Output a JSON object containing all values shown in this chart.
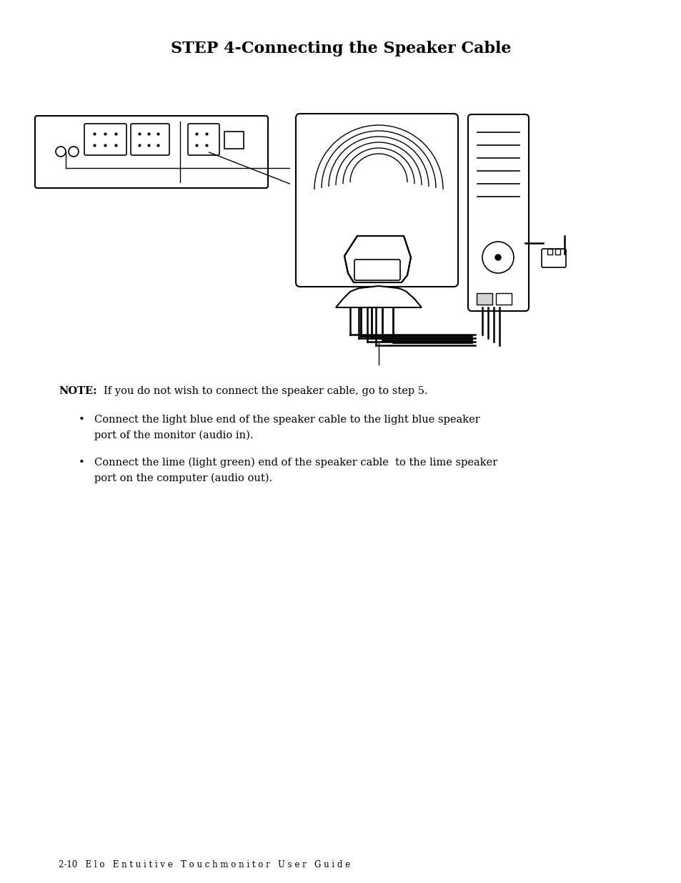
{
  "title": "STEP 4-Connecting the Speaker Cable",
  "note_label": "NOTE:",
  "note_text": "If you do not wish to connect the speaker cable, go to step 5.",
  "bullet1_line1": "Connect the light blue end of the speaker cable to the light blue speaker",
  "bullet1_line2": "port of the monitor (audio in).",
  "bullet2_line1": "Connect the lime (light green) end of the speaker cable  to the lime speaker",
  "bullet2_line2": "port on the computer (audio out).",
  "footer": "2-10   E l o   E n t u i t i v e   T o u c h m o n i t o r   U s e r   G u i d e",
  "bg_color": "#ffffff",
  "text_color": "#000000"
}
